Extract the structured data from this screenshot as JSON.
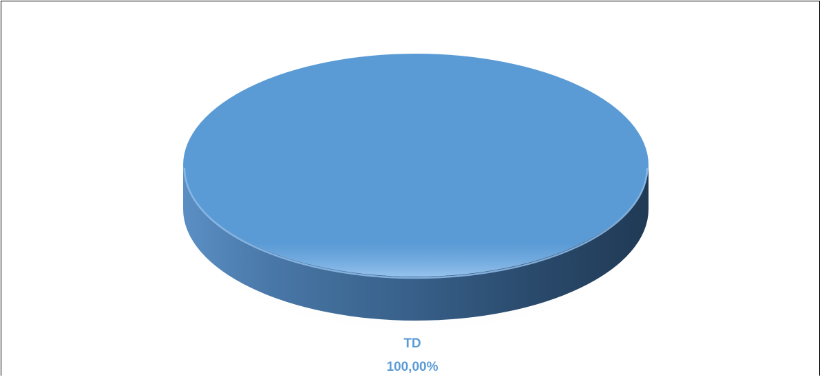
{
  "chart_data": {
    "type": "pie",
    "categories": [
      "TD"
    ],
    "values": [
      100
    ],
    "labels": [
      {
        "category": "TD",
        "value_text": "100,00%"
      }
    ],
    "colors": {
      "slice": "#5b9bd5",
      "label": "#5b9bd5"
    }
  }
}
